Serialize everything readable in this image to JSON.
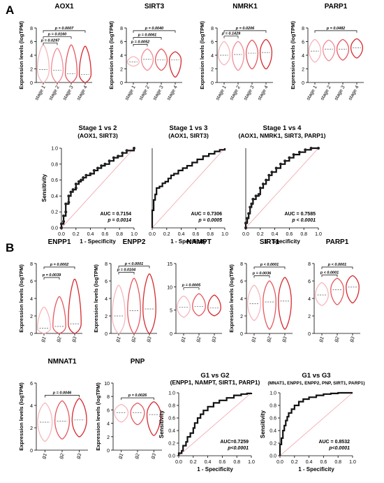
{
  "figure": {
    "panel_a": "A",
    "panel_b": "B"
  },
  "chart_data": [
    {
      "id": "A-AOX1",
      "type": "violin",
      "title": "AOX1",
      "ylabel": "Expression levels (logTPM)",
      "ylim": [
        0,
        8
      ],
      "yticks": [
        "0",
        "2",
        "4",
        "6",
        "8"
      ],
      "categories": [
        "stage 1",
        "stage 2",
        "stage 3",
        "stage 4"
      ],
      "colors": [
        "#f6b6bd",
        "#f08c97",
        "#e4585f",
        "#d6282d"
      ],
      "medians": [
        1.9,
        1.8,
        1.3,
        1.2
      ],
      "ranges": [
        [
          0,
          5.5
        ],
        [
          0,
          5.0
        ],
        [
          0,
          5.5
        ],
        [
          0,
          5.3
        ]
      ],
      "comparisons": [
        {
          "from": 0,
          "to": 3,
          "y": 7.6,
          "p": "p = 0.0007"
        },
        {
          "from": 0,
          "to": 2,
          "y": 6.7,
          "p": "p = 0.0160"
        },
        {
          "from": 0,
          "to": 1,
          "y": 5.8,
          "p": "p = 0.0297"
        }
      ]
    },
    {
      "id": "A-SIRT3",
      "type": "violin",
      "title": "SIRT3",
      "ylabel": "Expression levels (logTPM)",
      "ylim": [
        0,
        8
      ],
      "yticks": [
        "0",
        "2",
        "4",
        "6",
        "8"
      ],
      "categories": [
        "stage 1",
        "stage 2",
        "stage 3",
        "stage 4"
      ],
      "colors": [
        "#f6b6bd",
        "#f08c97",
        "#e4585f",
        "#d6282d"
      ],
      "medians": [
        3.0,
        3.4,
        3.3,
        3.3
      ],
      "ranges": [
        [
          2.4,
          3.8
        ],
        [
          1.8,
          4.9
        ],
        [
          1.8,
          4.9
        ],
        [
          0.8,
          4.5
        ]
      ],
      "comparisons": [
        {
          "from": 0,
          "to": 3,
          "y": 7.6,
          "p": "p = 0.0040"
        },
        {
          "from": 0,
          "to": 2,
          "y": 6.6,
          "p": "p = 0.0061"
        },
        {
          "from": 0,
          "to": 1,
          "y": 5.6,
          "p": "p = 0.0052"
        }
      ]
    },
    {
      "id": "A-NMRK1",
      "type": "violin",
      "title": "NMRK1",
      "ylabel": "Expression levels (logTPM)",
      "ylim": [
        0,
        8
      ],
      "yticks": [
        "0",
        "2",
        "4",
        "6",
        "8"
      ],
      "categories": [
        "stage 1",
        "stage 2",
        "stage 3",
        "stage 4"
      ],
      "colors": [
        "#f6b6bd",
        "#f08c97",
        "#e4585f",
        "#d6282d"
      ],
      "medians": [
        4.0,
        4.1,
        4.3,
        4.4
      ],
      "ranges": [
        [
          2.6,
          6.0
        ],
        [
          1.8,
          6.0
        ],
        [
          2.0,
          6.2
        ],
        [
          2.0,
          6.3
        ]
      ],
      "comparisons": [
        {
          "from": 0,
          "to": 3,
          "y": 7.6,
          "p": "p = 0.0206"
        },
        {
          "from": 0,
          "to": 1,
          "y": 6.8,
          "p": "p = 0.1429"
        }
      ]
    },
    {
      "id": "A-PARP1",
      "type": "violin",
      "title": "PARP1",
      "ylabel": "Expression levels (logTPM)",
      "ylim": [
        0,
        8
      ],
      "yticks": [
        "0",
        "2",
        "4",
        "6",
        "8"
      ],
      "categories": [
        "stage 1",
        "stage 2",
        "stage 3",
        "stage 4"
      ],
      "colors": [
        "#f6b6bd",
        "#f08c97",
        "#e4585f",
        "#d6282d"
      ],
      "medians": [
        4.6,
        4.9,
        4.9,
        5.1
      ],
      "ranges": [
        [
          3.0,
          6.3
        ],
        [
          3.2,
          6.2
        ],
        [
          3.3,
          6.3
        ],
        [
          3.6,
          6.4
        ]
      ],
      "comparisons": [
        {
          "from": 0,
          "to": 3,
          "y": 7.6,
          "p": "p = 0.0482"
        }
      ]
    },
    {
      "id": "A-ROC1",
      "type": "roc",
      "title": "Stage 1 vs 2",
      "subtitle": "(AOX1, SIRT3)",
      "xlabel": "1 - Specificity",
      "ylabel": "Sensitivity",
      "xlim": [
        0,
        1
      ],
      "ylim": [
        0,
        1
      ],
      "xticks": [
        "0.0",
        "0.2",
        "0.4",
        "0.6",
        "0.8",
        "1.0"
      ],
      "yticks": [
        "0.0",
        "0.2",
        "0.4",
        "0.6",
        "0.8",
        "1.0"
      ],
      "auc": "AUC = 0.7154",
      "p": "p = 0.0014",
      "markers": true,
      "points": [
        [
          0,
          0
        ],
        [
          0,
          0.05
        ],
        [
          0.03,
          0.08
        ],
        [
          0.03,
          0.15
        ],
        [
          0.06,
          0.2
        ],
        [
          0.06,
          0.3
        ],
        [
          0.1,
          0.32
        ],
        [
          0.1,
          0.4
        ],
        [
          0.13,
          0.45
        ],
        [
          0.16,
          0.48
        ],
        [
          0.2,
          0.5
        ],
        [
          0.2,
          0.55
        ],
        [
          0.24,
          0.58
        ],
        [
          0.27,
          0.6
        ],
        [
          0.3,
          0.63
        ],
        [
          0.34,
          0.66
        ],
        [
          0.4,
          0.68
        ],
        [
          0.45,
          0.72
        ],
        [
          0.5,
          0.75
        ],
        [
          0.55,
          0.78
        ],
        [
          0.6,
          0.8
        ],
        [
          0.66,
          0.84
        ],
        [
          0.72,
          0.88
        ],
        [
          0.78,
          0.9
        ],
        [
          0.84,
          0.94
        ],
        [
          0.9,
          0.97
        ],
        [
          1,
          1
        ]
      ]
    },
    {
      "id": "A-ROC2",
      "type": "roc",
      "title": "Stage 1 vs 3",
      "subtitle": "(AOX1, SIRT3)",
      "xlabel": "1 - Specificity",
      "ylabel": "",
      "xlim": [
        0,
        1
      ],
      "ylim": [
        0,
        1
      ],
      "xticks": [
        "0.0",
        "0.2",
        "0.4",
        "0.6",
        "0.8",
        "1.0"
      ],
      "yticks": [],
      "auc": "AUC = 0.7306",
      "p": "p = 0.0005",
      "markers": false,
      "points": [
        [
          0,
          0
        ],
        [
          0,
          0.22
        ],
        [
          0.02,
          0.35
        ],
        [
          0.04,
          0.42
        ],
        [
          0.06,
          0.5
        ],
        [
          0.1,
          0.52
        ],
        [
          0.14,
          0.56
        ],
        [
          0.18,
          0.58
        ],
        [
          0.22,
          0.62
        ],
        [
          0.26,
          0.66
        ],
        [
          0.3,
          0.68
        ],
        [
          0.36,
          0.72
        ],
        [
          0.42,
          0.75
        ],
        [
          0.48,
          0.78
        ],
        [
          0.55,
          0.82
        ],
        [
          0.62,
          0.86
        ],
        [
          0.7,
          0.9
        ],
        [
          0.78,
          0.93
        ],
        [
          0.86,
          0.96
        ],
        [
          0.93,
          0.98
        ],
        [
          1,
          1
        ]
      ]
    },
    {
      "id": "A-ROC3",
      "type": "roc",
      "title": "Stage 1 vs 4",
      "subtitle": "(AOX1, NMRK1, SIRT3, PARP1)",
      "xlabel": "1 - Specificity",
      "ylabel": "",
      "xlim": [
        0,
        1
      ],
      "ylim": [
        0,
        1
      ],
      "xticks": [
        "0.0",
        "0.2",
        "0.4",
        "0.6",
        "0.8",
        "1.0"
      ],
      "yticks": [],
      "auc": "AUC = 0.7585",
      "p": "p < 0.0001",
      "markers": true,
      "points": [
        [
          0,
          0
        ],
        [
          0,
          0.06
        ],
        [
          0.02,
          0.12
        ],
        [
          0.04,
          0.18
        ],
        [
          0.06,
          0.26
        ],
        [
          0.08,
          0.3
        ],
        [
          0.1,
          0.36
        ],
        [
          0.14,
          0.4
        ],
        [
          0.18,
          0.42
        ],
        [
          0.2,
          0.5
        ],
        [
          0.24,
          0.55
        ],
        [
          0.28,
          0.6
        ],
        [
          0.32,
          0.66
        ],
        [
          0.36,
          0.7
        ],
        [
          0.42,
          0.75
        ],
        [
          0.48,
          0.8
        ],
        [
          0.54,
          0.84
        ],
        [
          0.6,
          0.88
        ],
        [
          0.66,
          0.92
        ],
        [
          0.74,
          0.95
        ],
        [
          0.82,
          0.98
        ],
        [
          0.9,
          1
        ],
        [
          1,
          1
        ]
      ]
    },
    {
      "id": "B-ENPP1",
      "type": "violin",
      "title": "ENPP1",
      "ylabel": "Expression levels (logTPM)",
      "ylim": [
        0,
        8
      ],
      "yticks": [
        "0",
        "2",
        "4",
        "6",
        "8"
      ],
      "categories": [
        "g1",
        "g2",
        "g3"
      ],
      "colors": [
        "#f6b6bd",
        "#e4585f",
        "#d6282d"
      ],
      "medians": [
        0.6,
        0.8,
        1.1
      ],
      "ranges": [
        [
          0,
          3.0
        ],
        [
          0,
          4.2
        ],
        [
          0,
          6.2
        ]
      ],
      "comparisons": [
        {
          "from": 0,
          "to": 2,
          "y": 7.6,
          "p": "p = 0.0002"
        },
        {
          "from": 0,
          "to": 1,
          "y": 6.4,
          "p": "p = 0.0039"
        }
      ]
    },
    {
      "id": "B-ENPP2",
      "type": "violin",
      "title": "ENPP2",
      "ylabel": "Expression levels (logTPM)",
      "ylim": [
        0,
        8
      ],
      "yticks": [
        "0",
        "2",
        "4",
        "6",
        "8"
      ],
      "categories": [
        "g1",
        "g2",
        "g3"
      ],
      "colors": [
        "#f6b6bd",
        "#e4585f",
        "#d6282d"
      ],
      "medians": [
        2.0,
        2.6,
        2.8
      ],
      "ranges": [
        [
          0,
          5.5
        ],
        [
          0,
          6.3
        ],
        [
          0,
          6.8
        ]
      ],
      "comparisons": [
        {
          "from": 0,
          "to": 2,
          "y": 7.7,
          "p": "p < 0.0001"
        },
        {
          "from": 0,
          "to": 1,
          "y": 7.0,
          "p": "p = 0.0104"
        }
      ]
    },
    {
      "id": "B-NAMPT",
      "type": "violin",
      "title": "NAMPT",
      "ylabel": "",
      "ylim": [
        0,
        15
      ],
      "yticks": [
        "0",
        "5",
        "10",
        "15"
      ],
      "categories": [
        "g1",
        "g2",
        "g3"
      ],
      "colors": [
        "#f6b6bd",
        "#e4585f",
        "#d6282d"
      ],
      "medians": [
        5.6,
        5.8,
        5.5
      ],
      "ranges": [
        [
          3.5,
          8.0
        ],
        [
          3.8,
          8.5
        ],
        [
          3.8,
          8.2
        ]
      ],
      "comparisons": [
        {
          "from": 0,
          "to": 1,
          "y": 9.8,
          "p": "p = 0.0005"
        }
      ]
    },
    {
      "id": "B-SIRT1",
      "type": "violin",
      "title": "SIRT1",
      "ylabel": "Expression levels (logTPM)",
      "ylim": [
        0,
        8
      ],
      "yticks": [
        "0",
        "2",
        "4",
        "6",
        "8"
      ],
      "categories": [
        "g1",
        "g2",
        "g3"
      ],
      "colors": [
        "#f6b6bd",
        "#e4585f",
        "#d6282d"
      ],
      "medians": [
        3.4,
        3.6,
        3.7
      ],
      "ranges": [
        [
          1.5,
          5.5
        ],
        [
          0.5,
          6.0
        ],
        [
          0.5,
          6.4
        ]
      ],
      "comparisons": [
        {
          "from": 0,
          "to": 2,
          "y": 7.6,
          "p": "p < 0.0001"
        },
        {
          "from": 0,
          "to": 1,
          "y": 6.6,
          "p": "p = 0.0036"
        }
      ]
    },
    {
      "id": "B-PARP1",
      "type": "violin",
      "title": "PARP1",
      "ylabel": "",
      "ylim": [
        0,
        8
      ],
      "yticks": [
        "0",
        "2",
        "4",
        "6",
        "8"
      ],
      "categories": [
        "g1",
        "g2",
        "g3"
      ],
      "colors": [
        "#f6b6bd",
        "#e4585f",
        "#d6282d"
      ],
      "medians": [
        4.4,
        5.0,
        5.3
      ],
      "ranges": [
        [
          3.2,
          5.8
        ],
        [
          3.3,
          6.3
        ],
        [
          3.5,
          6.6
        ]
      ],
      "comparisons": [
        {
          "from": 0,
          "to": 2,
          "y": 7.6,
          "p": "p < 0.0001"
        },
        {
          "from": 0,
          "to": 1,
          "y": 6.7,
          "p": "p < 0.0001"
        }
      ]
    },
    {
      "id": "B-NMNAT1",
      "type": "violin",
      "title": "NMNAT1",
      "ylabel": "Expression levels (logTPM)",
      "ylim": [
        0,
        6
      ],
      "yticks": [
        "0",
        "2",
        "4",
        "6"
      ],
      "categories": [
        "g1",
        "g2",
        "g3"
      ],
      "colors": [
        "#f6b6bd",
        "#e4585f",
        "#d6282d"
      ],
      "medians": [
        2.5,
        2.6,
        2.7
      ],
      "ranges": [
        [
          0.8,
          4.2
        ],
        [
          1.0,
          4.4
        ],
        [
          1.2,
          4.6
        ]
      ],
      "comparisons": [
        {
          "from": 0,
          "to": 2,
          "y": 4.9,
          "p": "p = 0.0046"
        }
      ]
    },
    {
      "id": "B-PNP",
      "type": "violin",
      "title": "PNP",
      "ylabel": "Expression levels (logTPM)",
      "ylim": [
        0,
        10
      ],
      "yticks": [
        "0",
        "2",
        "4",
        "6",
        "8",
        "10"
      ],
      "categories": [
        "g1",
        "g2",
        "g3"
      ],
      "colors": [
        "#f6b6bd",
        "#e4585f",
        "#d6282d"
      ],
      "medians": [
        5.6,
        5.6,
        5.3
      ],
      "ranges": [
        [
          4.2,
          6.8
        ],
        [
          3.8,
          7.0
        ],
        [
          2.2,
          7.2
        ]
      ],
      "comparisons": [
        {
          "from": 0,
          "to": 2,
          "y": 7.8,
          "p": "p = 0.0026"
        }
      ]
    },
    {
      "id": "B-ROC1",
      "type": "roc",
      "title": "G1 vs G2",
      "subtitle": "(ENPP1, NAMPT, SIRT1, PARP1)",
      "xlabel": "1 - Specificity",
      "ylabel": "Sensitivity",
      "xlim": [
        0,
        1
      ],
      "ylim": [
        0,
        1
      ],
      "xticks": [
        "0.0",
        "0.2",
        "0.4",
        "0.6",
        "0.8",
        "1.0"
      ],
      "yticks": [
        "0.0",
        "0.2",
        "0.4",
        "0.6",
        "0.8",
        "1.0"
      ],
      "auc": "AUC=0.7259",
      "p": "p<0.0001",
      "markers": false,
      "points": [
        [
          0,
          0
        ],
        [
          0,
          0.04
        ],
        [
          0.04,
          0.08
        ],
        [
          0.06,
          0.16
        ],
        [
          0.1,
          0.22
        ],
        [
          0.12,
          0.3
        ],
        [
          0.16,
          0.36
        ],
        [
          0.2,
          0.44
        ],
        [
          0.22,
          0.52
        ],
        [
          0.26,
          0.6
        ],
        [
          0.3,
          0.66
        ],
        [
          0.34,
          0.72
        ],
        [
          0.4,
          0.78
        ],
        [
          0.48,
          0.84
        ],
        [
          0.56,
          0.88
        ],
        [
          0.66,
          0.92
        ],
        [
          0.76,
          0.96
        ],
        [
          0.86,
          0.98
        ],
        [
          0.94,
          0.99
        ],
        [
          1,
          1
        ]
      ]
    },
    {
      "id": "B-ROC2",
      "type": "roc",
      "title": "G1 vs G3",
      "subtitle": "(MNAT1, ENPP1, ENPP2, PNP, SIRT1, PARP1)",
      "xlabel": "1 - Specificity",
      "ylabel": "Sensitivity",
      "xlim": [
        0,
        1
      ],
      "ylim": [
        0,
        1
      ],
      "xticks": [
        "0.0",
        "0.2",
        "0.4",
        "0.6",
        "0.8",
        "1.0"
      ],
      "yticks": [
        "0.0",
        "0.2",
        "0.4",
        "0.6",
        "0.8",
        "1.0"
      ],
      "auc": "AUC = 0.8532",
      "p": "p<0.0001",
      "markers": false,
      "points": [
        [
          0,
          0
        ],
        [
          0,
          0.18
        ],
        [
          0.02,
          0.28
        ],
        [
          0.04,
          0.4
        ],
        [
          0.06,
          0.48
        ],
        [
          0.08,
          0.56
        ],
        [
          0.1,
          0.62
        ],
        [
          0.12,
          0.68
        ],
        [
          0.16,
          0.74
        ],
        [
          0.2,
          0.8
        ],
        [
          0.26,
          0.86
        ],
        [
          0.32,
          0.9
        ],
        [
          0.4,
          0.93
        ],
        [
          0.5,
          0.96
        ],
        [
          0.6,
          0.98
        ],
        [
          0.7,
          0.99
        ],
        [
          0.8,
          1
        ],
        [
          1,
          1
        ]
      ]
    }
  ]
}
